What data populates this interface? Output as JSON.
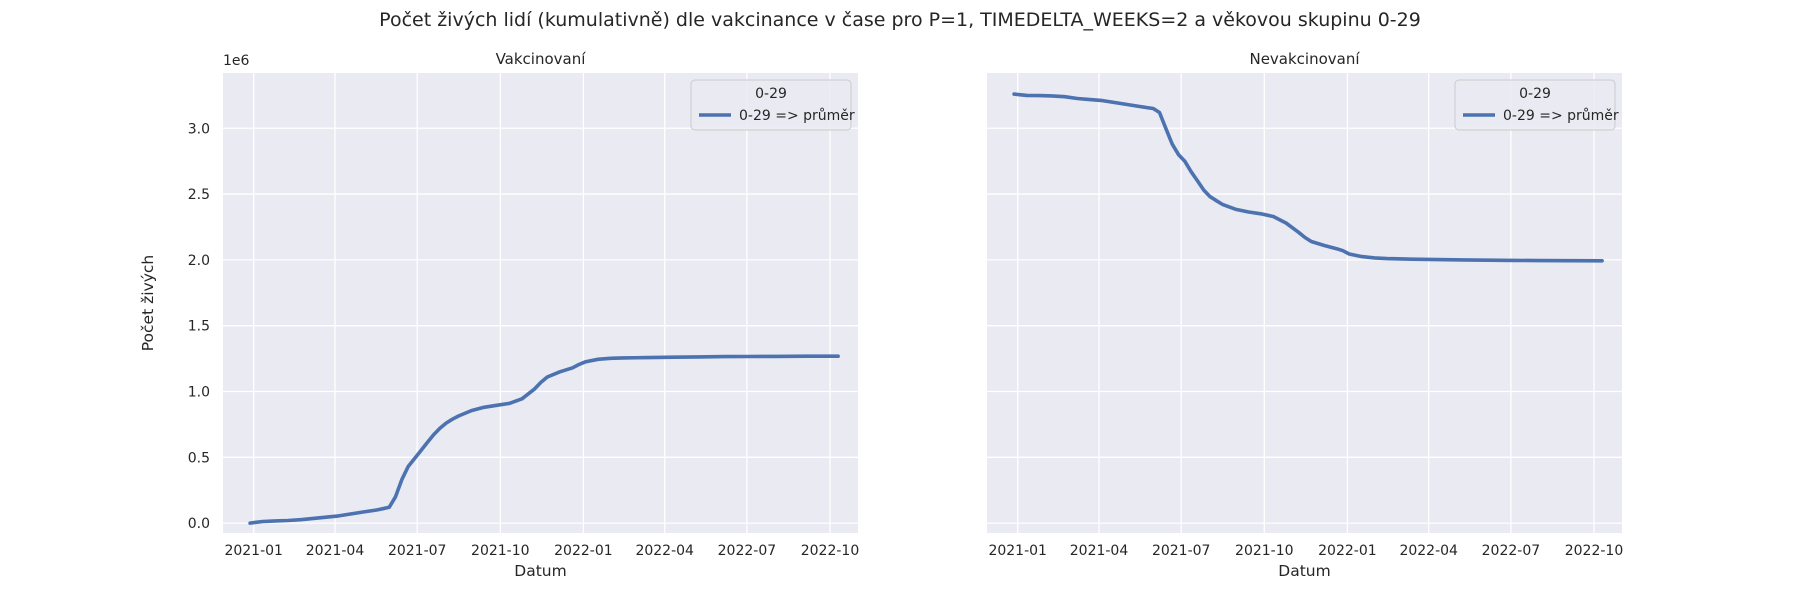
{
  "figure": {
    "title": "Počet živých lidí (kumulativně) dle vakcinance v čase pro P=1, TIMEDELTA_WEEKS=2 a věkovou skupinu 0-29",
    "background": "#ffffff"
  },
  "chart_data": [
    {
      "type": "line",
      "title": "Vakcinovaní",
      "xlabel": "Datum",
      "ylabel": "Počet živých",
      "y_offset_label": "1e6",
      "show_y_ticks": true,
      "x_ticks": [
        "2021-01-01",
        "2021-04-01",
        "2021-07-01",
        "2021-10-01",
        "2022-01-01",
        "2022-04-01",
        "2022-07-01",
        "2022-10-01"
      ],
      "x_tick_labels": [
        "2021-01",
        "2021-04",
        "2021-07",
        "2021-10",
        "2022-01",
        "2022-04",
        "2022-07",
        "2022-10"
      ],
      "xlim": [
        "2020-11-28",
        "2022-11-01"
      ],
      "y_ticks": [
        0.0,
        0.5,
        1.0,
        1.5,
        2.0,
        2.5,
        3.0
      ],
      "y_tick_labels": [
        "0.0",
        "0.5",
        "1.0",
        "1.5",
        "2.0",
        "2.5",
        "3.0"
      ],
      "ylim": [
        -0.075,
        3.42
      ],
      "grid": true,
      "legend": {
        "position": "upper right",
        "title": "0-29",
        "entries": [
          "0-29 => průměr"
        ]
      },
      "series": [
        {
          "name": "0-29 => průměr",
          "color": "#4c72b0",
          "x": [
            "2020-12-28",
            "2021-01-11",
            "2021-01-25",
            "2021-02-08",
            "2021-02-22",
            "2021-03-08",
            "2021-03-22",
            "2021-04-05",
            "2021-04-19",
            "2021-05-03",
            "2021-05-17",
            "2021-05-24",
            "2021-05-31",
            "2021-06-07",
            "2021-06-14",
            "2021-06-21",
            "2021-06-28",
            "2021-07-05",
            "2021-07-12",
            "2021-07-19",
            "2021-07-26",
            "2021-08-02",
            "2021-08-09",
            "2021-08-16",
            "2021-08-30",
            "2021-09-13",
            "2021-09-27",
            "2021-10-11",
            "2021-10-25",
            "2021-11-08",
            "2021-11-15",
            "2021-11-22",
            "2021-12-06",
            "2021-12-20",
            "2021-12-27",
            "2022-01-03",
            "2022-01-17",
            "2022-01-31",
            "2022-02-14",
            "2022-03-14",
            "2022-04-11",
            "2022-05-09",
            "2022-06-06",
            "2022-07-04",
            "2022-08-01",
            "2022-09-05",
            "2022-10-10"
          ],
          "y": [
            0.0,
            0.012,
            0.017,
            0.02,
            0.026,
            0.036,
            0.045,
            0.055,
            0.07,
            0.085,
            0.1,
            0.11,
            0.12,
            0.2,
            0.33,
            0.43,
            0.49,
            0.55,
            0.61,
            0.67,
            0.72,
            0.76,
            0.79,
            0.815,
            0.855,
            0.88,
            0.895,
            0.91,
            0.945,
            1.02,
            1.07,
            1.11,
            1.15,
            1.18,
            1.205,
            1.225,
            1.245,
            1.252,
            1.255,
            1.258,
            1.261,
            1.263,
            1.265,
            1.266,
            1.267,
            1.268,
            1.268
          ]
        }
      ]
    },
    {
      "type": "line",
      "title": "Nevakcinovaní",
      "xlabel": "Datum",
      "ylabel": "",
      "y_offset_label": "",
      "show_y_ticks": false,
      "x_ticks": [
        "2021-01-01",
        "2021-04-01",
        "2021-07-01",
        "2021-10-01",
        "2022-01-01",
        "2022-04-01",
        "2022-07-01",
        "2022-10-01"
      ],
      "x_tick_labels": [
        "2021-01",
        "2021-04",
        "2021-07",
        "2021-10",
        "2022-01",
        "2022-04",
        "2022-07",
        "2022-10"
      ],
      "xlim": [
        "2020-11-28",
        "2022-11-01"
      ],
      "y_ticks": [
        0.0,
        0.5,
        1.0,
        1.5,
        2.0,
        2.5,
        3.0
      ],
      "y_tick_labels": [
        "0.0",
        "0.5",
        "1.0",
        "1.5",
        "2.0",
        "2.5",
        "3.0"
      ],
      "ylim": [
        -0.075,
        3.42
      ],
      "grid": true,
      "legend": {
        "position": "upper right",
        "title": "0-29",
        "entries": [
          "0-29 => průměr"
        ]
      },
      "series": [
        {
          "name": "0-29 => průměr",
          "color": "#4c72b0",
          "x": [
            "2020-12-28",
            "2021-01-11",
            "2021-01-25",
            "2021-02-08",
            "2021-02-22",
            "2021-03-08",
            "2021-03-22",
            "2021-04-05",
            "2021-04-19",
            "2021-05-03",
            "2021-05-17",
            "2021-05-24",
            "2021-05-31",
            "2021-06-07",
            "2021-06-14",
            "2021-06-21",
            "2021-06-28",
            "2021-07-05",
            "2021-07-12",
            "2021-07-19",
            "2021-07-26",
            "2021-08-02",
            "2021-08-09",
            "2021-08-16",
            "2021-08-30",
            "2021-09-13",
            "2021-09-27",
            "2021-10-11",
            "2021-10-25",
            "2021-11-08",
            "2021-11-15",
            "2021-11-22",
            "2021-12-06",
            "2021-12-20",
            "2021-12-27",
            "2022-01-03",
            "2022-01-17",
            "2022-01-31",
            "2022-02-14",
            "2022-03-14",
            "2022-04-11",
            "2022-05-09",
            "2022-06-06",
            "2022-07-04",
            "2022-08-01",
            "2022-09-05",
            "2022-10-10"
          ],
          "y": [
            3.26,
            3.25,
            3.248,
            3.246,
            3.24,
            3.226,
            3.218,
            3.21,
            3.195,
            3.18,
            3.165,
            3.157,
            3.15,
            3.12,
            3.0,
            2.88,
            2.8,
            2.75,
            2.67,
            2.6,
            2.53,
            2.48,
            2.45,
            2.42,
            2.385,
            2.365,
            2.35,
            2.33,
            2.28,
            2.21,
            2.17,
            2.14,
            2.11,
            2.085,
            2.07,
            2.045,
            2.025,
            2.015,
            2.01,
            2.005,
            2.002,
            2.0,
            1.998,
            1.996,
            1.995,
            1.994,
            1.993
          ]
        }
      ]
    }
  ]
}
